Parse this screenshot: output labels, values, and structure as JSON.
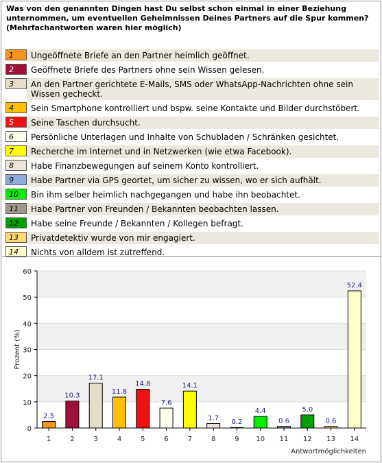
{
  "question": "Was von den genannten Dingen hast Du selbst schon einmal in einer Beziehung unternommen, um eventuellen Geheimnissen Deines Partners auf die Spur kommen? (Mehrfachantworten waren hier möglich)",
  "legend": [
    {
      "num": "1",
      "label": "Ungeöffnete Briefe an den Partner heimlich geöffnet.",
      "color": "#f7941d",
      "numColor": "#000000"
    },
    {
      "num": "2",
      "label": "Geöffnete Briefe des Partners ohne sein Wissen gelesen.",
      "color": "#a0103a",
      "numColor": "#ffffff"
    },
    {
      "num": "3",
      "label": "An den Partner gerichtete E-Mails, SMS oder WhatsApp-Nachrichten ohne sein Wissen gecheckt.",
      "color": "#e6dccb",
      "numColor": "#000000"
    },
    {
      "num": "4",
      "label": "Sein Smartphone kontrolliert und bspw. seine Kontakte und Bilder durchstöbert.",
      "color": "#ffc000",
      "numColor": "#000000"
    },
    {
      "num": "5",
      "label": "Seine Taschen durchsucht.",
      "color": "#ee1111",
      "numColor": "#ffffff"
    },
    {
      "num": "6",
      "label": "Persönliche Unterlagen und Inhalte von Schubladen / Schränken gesichtet.",
      "color": "#fffff0",
      "numColor": "#000000"
    },
    {
      "num": "7",
      "label": "Recherche im Internet und in Netzwerken (wie etwa Facebook).",
      "color": "#ffff00",
      "numColor": "#000000"
    },
    {
      "num": "8",
      "label": "Habe Finanzbewegungen auf seinem Konto kontrolliert.",
      "color": "#ece6da",
      "numColor": "#000000"
    },
    {
      "num": "9",
      "label": "Habe Partner via GPS geortet, um sicher zu wissen, wo er sich aufhält.",
      "color": "#8eaadb",
      "numColor": "#000000"
    },
    {
      "num": "10",
      "label": "Bin ihm selber heimlich nachgegangen und habe ihn beobachtet.",
      "color": "#00ee00",
      "numColor": "#000000"
    },
    {
      "num": "11",
      "label": "Habe Partner von Freunden / Bekannten beobachten lassen.",
      "color": "#9e978a",
      "numColor": "#000000"
    },
    {
      "num": "12",
      "label": "Habe seine Freunde / Bekannten / Kollegen befragt.",
      "color": "#00a000",
      "numColor": "#000000"
    },
    {
      "num": "13",
      "label": "Privatdetektiv wurde von mir engagiert.",
      "color": "#ffd973",
      "numColor": "#000000"
    },
    {
      "num": "14",
      "label": "Nichts von alldem ist zutreffend.",
      "color": "#ffffcc",
      "numColor": "#000000"
    }
  ],
  "chart_data": {
    "type": "bar",
    "categories": [
      "1",
      "2",
      "3",
      "4",
      "5",
      "6",
      "7",
      "8",
      "9",
      "10",
      "11",
      "12",
      "13",
      "14"
    ],
    "values": [
      2.5,
      10.3,
      17.1,
      11.8,
      14.8,
      7.6,
      14.1,
      1.7,
      0.2,
      4.4,
      0.6,
      5.0,
      0.6,
      52.4
    ],
    "value_labels": [
      "2.5",
      "10.3",
      "17.1",
      "11.8",
      "14.8",
      "7.6",
      "14.1",
      "1.7",
      "0.2",
      "4.4",
      "0.6",
      "5.0",
      "0.6",
      "52.4"
    ],
    "colors": [
      "#f7941d",
      "#a0103a",
      "#e6dccb",
      "#ffc000",
      "#ee1111",
      "#fffff0",
      "#ffff00",
      "#ece6da",
      "#8eaadb",
      "#00ee00",
      "#9e978a",
      "#00a000",
      "#ffd973",
      "#ffffcc"
    ],
    "title": "",
    "xlabel": "Antwortmöglichkeiten",
    "ylabel": "Prozent (%)",
    "ylim": [
      0,
      60
    ],
    "yticks": [
      0,
      10,
      20,
      30,
      40,
      50,
      60
    ],
    "grid": "horizontal bands",
    "value_label_color": "#1a237e"
  }
}
